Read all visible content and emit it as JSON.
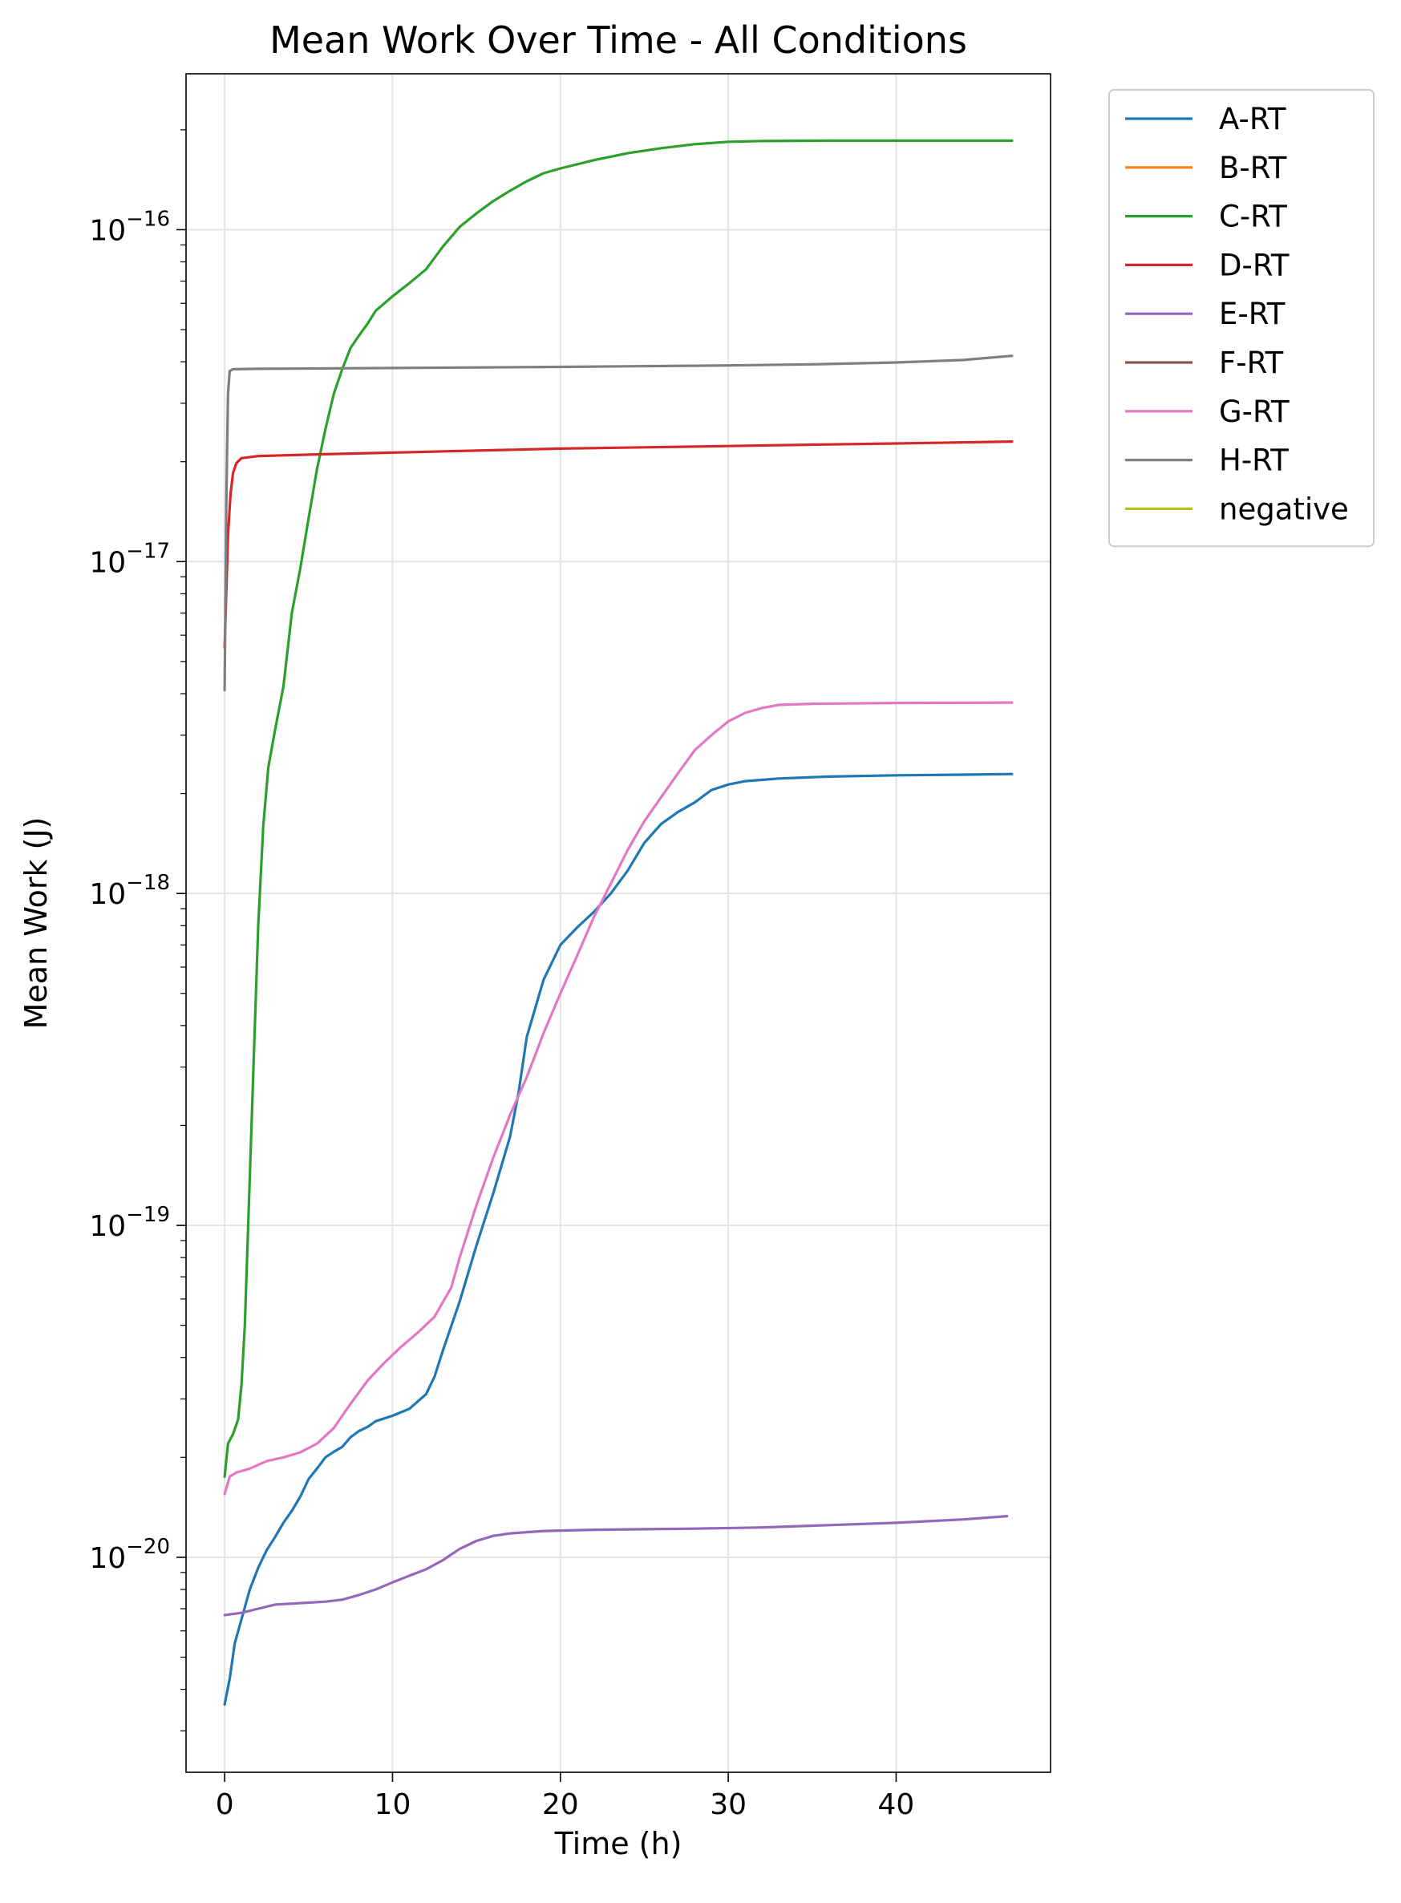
{
  "chart_data": {
    "type": "line",
    "title": "Mean Work Over Time - All Conditions",
    "xlabel": "Time (h)",
    "ylabel": "Mean Work (J)",
    "xlim": [
      -2.3,
      49.2
    ],
    "ylim": [
      2.25e-21,
      2.95e-16
    ],
    "yscale": "log",
    "grid": true,
    "legend_position": "outside-top-right",
    "x_ticks": [
      {
        "value": 0,
        "label": "0"
      },
      {
        "value": 10,
        "label": "10"
      },
      {
        "value": 20,
        "label": "20"
      },
      {
        "value": 30,
        "label": "30"
      },
      {
        "value": 40,
        "label": "40"
      }
    ],
    "y_ticks": [
      {
        "value": 1e-20,
        "base": "10",
        "exp": "−20"
      },
      {
        "value": 1e-19,
        "base": "10",
        "exp": "−19"
      },
      {
        "value": 1e-18,
        "base": "10",
        "exp": "−18"
      },
      {
        "value": 1e-17,
        "base": "10",
        "exp": "−17"
      },
      {
        "value": 1e-16,
        "base": "10",
        "exp": "−16"
      }
    ],
    "series": [
      {
        "name": "A-RT",
        "color": "#1f77b4",
        "points": [
          [
            0,
            3.6e-21
          ],
          [
            0.3,
            4.3e-21
          ],
          [
            0.6,
            5.5e-21
          ],
          [
            1,
            6.5e-21
          ],
          [
            1.5,
            8e-21
          ],
          [
            2,
            9.3e-21
          ],
          [
            2.5,
            1.05e-20
          ],
          [
            3,
            1.15e-20
          ],
          [
            3.5,
            1.27e-20
          ],
          [
            4,
            1.38e-20
          ],
          [
            4.5,
            1.52e-20
          ],
          [
            5,
            1.72e-20
          ],
          [
            5.5,
            1.85e-20
          ],
          [
            6,
            2e-20
          ],
          [
            6.5,
            2.08e-20
          ],
          [
            7,
            2.15e-20
          ],
          [
            7.5,
            2.3e-20
          ],
          [
            8,
            2.4e-20
          ],
          [
            8.5,
            2.47e-20
          ],
          [
            9,
            2.57e-20
          ],
          [
            10,
            2.67e-20
          ],
          [
            11,
            2.8e-20
          ],
          [
            12,
            3.1e-20
          ],
          [
            12.5,
            3.5e-20
          ],
          [
            13,
            4.2e-20
          ],
          [
            14,
            5.9e-20
          ],
          [
            15,
            8.7e-20
          ],
          [
            16,
            1.25e-19
          ],
          [
            17,
            1.85e-19
          ],
          [
            17.5,
            2.5e-19
          ],
          [
            18,
            3.7e-19
          ],
          [
            19,
            5.5e-19
          ],
          [
            20,
            7e-19
          ],
          [
            21,
            7.9e-19
          ],
          [
            22,
            8.8e-19
          ],
          [
            23,
            1e-18
          ],
          [
            24,
            1.17e-18
          ],
          [
            25,
            1.42e-18
          ],
          [
            26,
            1.62e-18
          ],
          [
            27,
            1.76e-18
          ],
          [
            28,
            1.88e-18
          ],
          [
            29,
            2.05e-18
          ],
          [
            30,
            2.13e-18
          ],
          [
            31,
            2.18e-18
          ],
          [
            33,
            2.22e-18
          ],
          [
            36,
            2.25e-18
          ],
          [
            40,
            2.27e-18
          ],
          [
            44,
            2.28e-18
          ],
          [
            46.9,
            2.29e-18
          ]
        ]
      },
      {
        "name": "B-RT",
        "color": "#ff7f0e",
        "points": []
      },
      {
        "name": "C-RT",
        "color": "#2ca02c",
        "points": [
          [
            0,
            1.75e-20
          ],
          [
            0.2,
            2.2e-20
          ],
          [
            0.5,
            2.35e-20
          ],
          [
            0.8,
            2.6e-20
          ],
          [
            1,
            3.3e-20
          ],
          [
            1.2,
            5e-20
          ],
          [
            1.5,
            1.4e-19
          ],
          [
            1.8,
            4e-19
          ],
          [
            2,
            8e-19
          ],
          [
            2.3,
            1.6e-18
          ],
          [
            2.6,
            2.4e-18
          ],
          [
            3,
            3.1e-18
          ],
          [
            3.5,
            4.2e-18
          ],
          [
            4,
            7e-18
          ],
          [
            4.5,
            9.5e-18
          ],
          [
            5,
            1.35e-17
          ],
          [
            5.5,
            1.9e-17
          ],
          [
            6,
            2.5e-17
          ],
          [
            6.5,
            3.2e-17
          ],
          [
            7,
            3.8e-17
          ],
          [
            7.5,
            4.4e-17
          ],
          [
            8,
            4.8e-17
          ],
          [
            8.5,
            5.2e-17
          ],
          [
            9,
            5.7e-17
          ],
          [
            10,
            6.3e-17
          ],
          [
            11,
            6.9e-17
          ],
          [
            12,
            7.6e-17
          ],
          [
            13,
            8.9e-17
          ],
          [
            14,
            1.02e-16
          ],
          [
            15,
            1.12e-16
          ],
          [
            16,
            1.22e-16
          ],
          [
            17,
            1.31e-16
          ],
          [
            18,
            1.4e-16
          ],
          [
            19,
            1.48e-16
          ],
          [
            20,
            1.53e-16
          ],
          [
            22,
            1.62e-16
          ],
          [
            24,
            1.7e-16
          ],
          [
            26,
            1.76e-16
          ],
          [
            28,
            1.81e-16
          ],
          [
            30,
            1.84e-16
          ],
          [
            32,
            1.85e-16
          ],
          [
            36,
            1.855e-16
          ],
          [
            40,
            1.855e-16
          ],
          [
            46.9,
            1.855e-16
          ]
        ]
      },
      {
        "name": "D-RT",
        "color": "#d62728",
        "points": [
          [
            0,
            5.5e-18
          ],
          [
            0.2,
            1.2e-17
          ],
          [
            0.35,
            1.6e-17
          ],
          [
            0.5,
            1.85e-17
          ],
          [
            0.7,
            1.98e-17
          ],
          [
            1,
            2.05e-17
          ],
          [
            2,
            2.08e-17
          ],
          [
            5,
            2.1e-17
          ],
          [
            10,
            2.13e-17
          ],
          [
            15,
            2.16e-17
          ],
          [
            20,
            2.19e-17
          ],
          [
            25,
            2.21e-17
          ],
          [
            30,
            2.23e-17
          ],
          [
            35,
            2.25e-17
          ],
          [
            40,
            2.27e-17
          ],
          [
            46.9,
            2.3e-17
          ]
        ]
      },
      {
        "name": "E-RT",
        "color": "#9467bd",
        "points": [
          [
            0,
            6.7e-21
          ],
          [
            1,
            6.8e-21
          ],
          [
            2,
            7e-21
          ],
          [
            3,
            7.2e-21
          ],
          [
            4,
            7.25e-21
          ],
          [
            5,
            7.3e-21
          ],
          [
            6,
            7.35e-21
          ],
          [
            7,
            7.45e-21
          ],
          [
            8,
            7.7e-21
          ],
          [
            9,
            8e-21
          ],
          [
            10,
            8.4e-21
          ],
          [
            11,
            8.8e-21
          ],
          [
            12,
            9.2e-21
          ],
          [
            13,
            9.8e-21
          ],
          [
            14,
            1.06e-20
          ],
          [
            15,
            1.12e-20
          ],
          [
            16,
            1.16e-20
          ],
          [
            17,
            1.18e-20
          ],
          [
            19,
            1.2e-20
          ],
          [
            22,
            1.21e-20
          ],
          [
            25,
            1.215e-20
          ],
          [
            28,
            1.22e-20
          ],
          [
            32,
            1.23e-20
          ],
          [
            36,
            1.25e-20
          ],
          [
            40,
            1.27e-20
          ],
          [
            44,
            1.3e-20
          ],
          [
            46.6,
            1.33e-20
          ]
        ]
      },
      {
        "name": "F-RT",
        "color": "#8c564b",
        "points": []
      },
      {
        "name": "G-RT",
        "color": "#e377c2",
        "points": [
          [
            0,
            1.55e-20
          ],
          [
            0.3,
            1.75e-20
          ],
          [
            0.7,
            1.8e-20
          ],
          [
            1.5,
            1.85e-20
          ],
          [
            2.5,
            1.95e-20
          ],
          [
            3.5,
            2e-20
          ],
          [
            4.5,
            2.07e-20
          ],
          [
            5.5,
            2.2e-20
          ],
          [
            6.5,
            2.45e-20
          ],
          [
            7.5,
            2.9e-20
          ],
          [
            8.5,
            3.4e-20
          ],
          [
            9.5,
            3.85e-20
          ],
          [
            10.5,
            4.3e-20
          ],
          [
            11.5,
            4.75e-20
          ],
          [
            12.5,
            5.3e-20
          ],
          [
            13.5,
            6.5e-20
          ],
          [
            14,
            8e-20
          ],
          [
            15,
            1.15e-19
          ],
          [
            16,
            1.6e-19
          ],
          [
            17,
            2.15e-19
          ],
          [
            18,
            2.8e-19
          ],
          [
            19,
            3.8e-19
          ],
          [
            20,
            5e-19
          ],
          [
            21,
            6.5e-19
          ],
          [
            22,
            8.5e-19
          ],
          [
            23,
            1.07e-18
          ],
          [
            24,
            1.35e-18
          ],
          [
            25,
            1.65e-18
          ],
          [
            26,
            1.95e-18
          ],
          [
            27,
            2.3e-18
          ],
          [
            28,
            2.7e-18
          ],
          [
            29,
            3e-18
          ],
          [
            30,
            3.3e-18
          ],
          [
            31,
            3.5e-18
          ],
          [
            32,
            3.62e-18
          ],
          [
            33,
            3.7e-18
          ],
          [
            35,
            3.73e-18
          ],
          [
            40,
            3.75e-18
          ],
          [
            46.9,
            3.76e-18
          ]
        ]
      },
      {
        "name": "H-RT",
        "color": "#7f7f7f",
        "points": [
          [
            0,
            4.1e-18
          ],
          [
            0.1,
            1.5e-17
          ],
          [
            0.2,
            3.2e-17
          ],
          [
            0.3,
            3.75e-17
          ],
          [
            0.5,
            3.8e-17
          ],
          [
            2,
            3.81e-17
          ],
          [
            10,
            3.83e-17
          ],
          [
            20,
            3.86e-17
          ],
          [
            30,
            3.9e-17
          ],
          [
            35,
            3.93e-17
          ],
          [
            40,
            3.98e-17
          ],
          [
            44,
            4.05e-17
          ],
          [
            46.9,
            4.17e-17
          ]
        ]
      },
      {
        "name": "negative",
        "color": "#bcbd22",
        "points": []
      }
    ]
  }
}
